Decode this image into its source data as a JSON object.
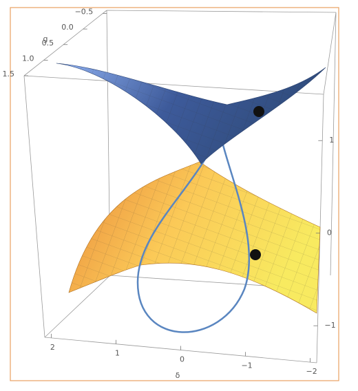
{
  "chart_data": {
    "type": "surface3d",
    "xlabel": "δ",
    "xlim": [
      2.1,
      -2.1
    ],
    "xticks": [
      2,
      1,
      0,
      {
        "value": -1,
        "label": "−1"
      },
      {
        "value": -2,
        "label": "−2"
      }
    ],
    "ylabel": "g",
    "ylim": [
      1.5,
      -0.6
    ],
    "yticks": [
      {
        "value": -0.5,
        "label": "−0.5"
      },
      {
        "value": 0,
        "label": "0.0"
      },
      0.5,
      {
        "value": 1,
        "label": "1.0"
      },
      1.5
    ],
    "zlim": [
      -1.4,
      1.5
    ],
    "zticks": [
      1,
      0,
      {
        "value": -1,
        "label": "−1"
      }
    ],
    "upper_color": "#5b7fc4",
    "lower_color": "#f5b040",
    "curve_color": "#5a86c0"
  }
}
